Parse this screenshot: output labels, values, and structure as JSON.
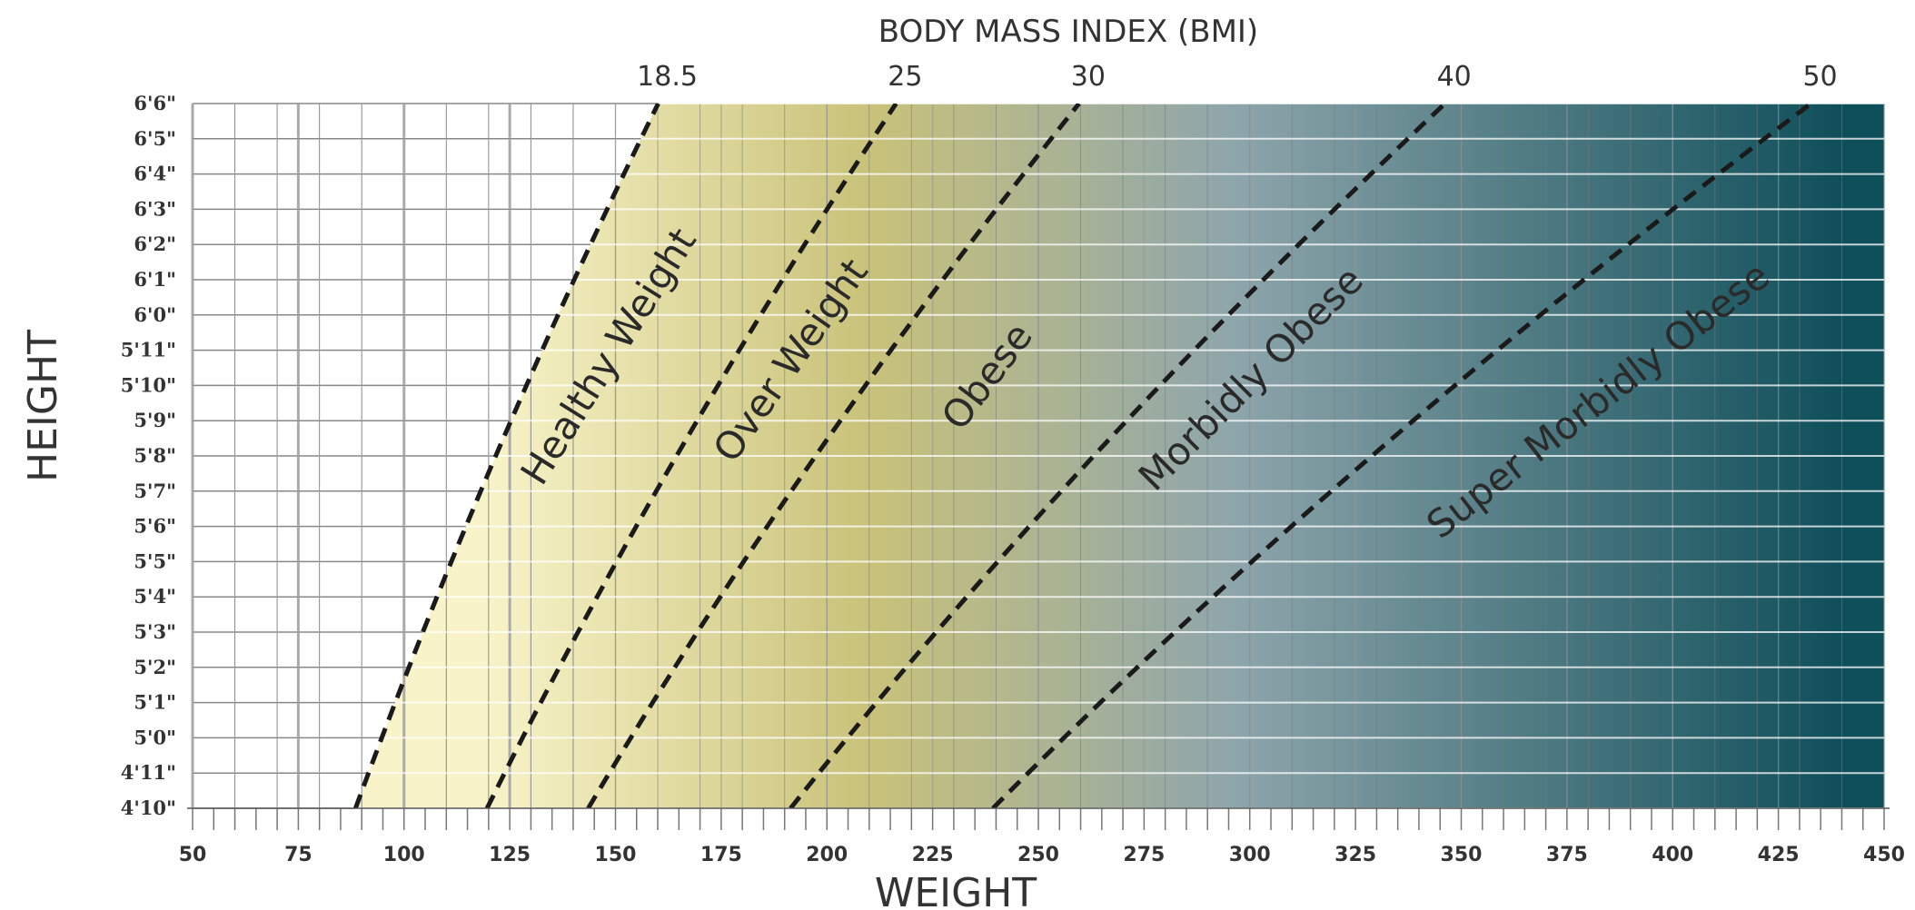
{
  "chart_data": {
    "type": "line",
    "title": "BODY MASS INDEX (BMI)",
    "xlabel": "WEIGHT",
    "ylabel": "HEIGHT",
    "xlim": [
      50,
      450
    ],
    "ylim": [
      "4'10\"",
      "6'6\""
    ],
    "x_ticks": [
      "50",
      "75",
      "100",
      "125",
      "150",
      "175",
      "200",
      "225",
      "250",
      "275",
      "300",
      "325",
      "350",
      "375",
      "400",
      "425",
      "450"
    ],
    "y_ticks": [
      "6'6\"",
      "6'5\"",
      "6'4\"",
      "6'3\"",
      "6'2\"",
      "6'1\"",
      "6'0\"",
      "5'11\"",
      "5'10\"",
      "5'9\"",
      "5'8\"",
      "5'7\"",
      "5'6\"",
      "5'5\"",
      "5'4\"",
      "5'3\"",
      "5'2\"",
      "5'1\"",
      "5'0\"",
      "4'11\"",
      "4'10\""
    ],
    "bmi_lines": [
      {
        "label": "18.5",
        "bmi": 18.5
      },
      {
        "label": "25",
        "bmi": 25
      },
      {
        "label": "30",
        "bmi": 30
      },
      {
        "label": "40",
        "bmi": 40
      },
      {
        "label": "50",
        "bmi": 50
      }
    ],
    "zones": [
      "Healthy Weight",
      "Over Weight",
      "Obese",
      "Morbidly Obese",
      "Super Morbidly Obese"
    ],
    "grid": true,
    "colors": {
      "light": "#f8f3c8",
      "olive": "#c9c27a",
      "blue_gray": "#8ea5ab",
      "teal": "#0f4f5a",
      "grid_light": "#ffffff",
      "grid_dark": "#999999"
    }
  }
}
